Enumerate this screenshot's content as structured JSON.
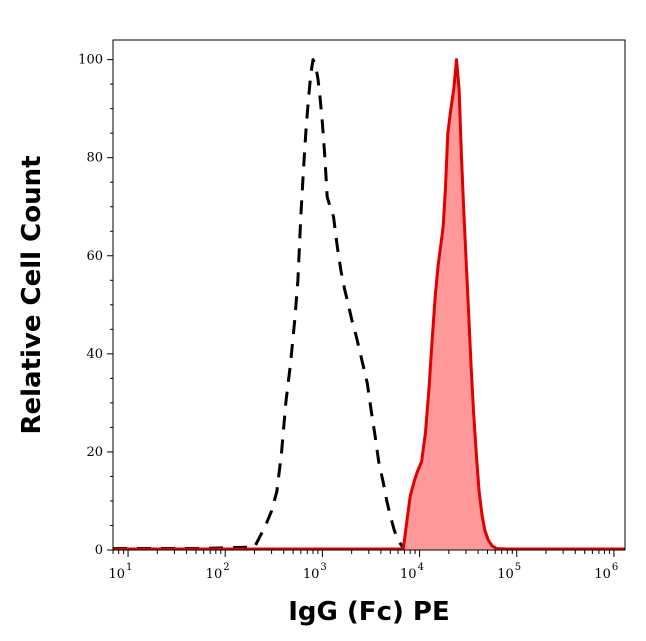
{
  "chart_data": {
    "type": "area",
    "title": "",
    "xlabel": "IgG (Fc) PE",
    "ylabel": "Relative Cell Count",
    "x_scale": "log10",
    "xlim": [
      7,
      1300000
    ],
    "ylim": [
      0,
      104
    ],
    "x_ticks": [
      {
        "base": "10",
        "exp": "1",
        "value": 10
      },
      {
        "base": "10",
        "exp": "2",
        "value": 100
      },
      {
        "base": "10",
        "exp": "3",
        "value": 1000
      },
      {
        "base": "10",
        "exp": "4",
        "value": 10000
      },
      {
        "base": "10",
        "exp": "5",
        "value": 100000
      },
      {
        "base": "10",
        "exp": "6",
        "value": 1000000
      }
    ],
    "y_ticks": [
      0,
      20,
      40,
      60,
      80,
      100
    ],
    "grid": false,
    "legend": "none",
    "series": [
      {
        "style": "dashed",
        "color": "#000000",
        "fill": "none",
        "points": [
          [
            7,
            0.3
          ],
          [
            50,
            0.3
          ],
          [
            200,
            0.6
          ],
          [
            260,
            5
          ],
          [
            300,
            8
          ],
          [
            340,
            12
          ],
          [
            380,
            20
          ],
          [
            420,
            30
          ],
          [
            470,
            38
          ],
          [
            520,
            47
          ],
          [
            560,
            55
          ],
          [
            600,
            68
          ],
          [
            640,
            78
          ],
          [
            680,
            86
          ],
          [
            720,
            92
          ],
          [
            760,
            97
          ],
          [
            800,
            100
          ],
          [
            850,
            99
          ],
          [
            900,
            96
          ],
          [
            950,
            92
          ],
          [
            1000,
            87
          ],
          [
            1060,
            80
          ],
          [
            1120,
            72
          ],
          [
            1200,
            70
          ],
          [
            1300,
            68
          ],
          [
            1420,
            62
          ],
          [
            1550,
            57
          ],
          [
            1700,
            53
          ],
          [
            1850,
            50
          ],
          [
            2000,
            47
          ],
          [
            2200,
            44
          ],
          [
            2400,
            41
          ],
          [
            2600,
            38
          ],
          [
            2900,
            34
          ],
          [
            3200,
            28
          ],
          [
            3500,
            23
          ],
          [
            3800,
            18
          ],
          [
            4200,
            14
          ],
          [
            4600,
            10
          ],
          [
            5000,
            7
          ],
          [
            5500,
            4
          ],
          [
            6000,
            2
          ],
          [
            6600,
            0.8
          ],
          [
            7000,
            0.3
          ]
        ]
      },
      {
        "style": "solid",
        "color": "#e00000",
        "fill": "#ff9999",
        "points": [
          [
            7,
            0.2
          ],
          [
            1000,
            0.2
          ],
          [
            6800,
            0.2
          ],
          [
            7300,
            5
          ],
          [
            8000,
            11
          ],
          [
            8800,
            14
          ],
          [
            9500,
            16
          ],
          [
            10500,
            18
          ],
          [
            11500,
            24
          ],
          [
            12500,
            33
          ],
          [
            13500,
            43
          ],
          [
            14500,
            52
          ],
          [
            15500,
            58
          ],
          [
            16500,
            62
          ],
          [
            17500,
            66
          ],
          [
            18500,
            74
          ],
          [
            19500,
            85
          ],
          [
            21000,
            90
          ],
          [
            22500,
            94
          ],
          [
            24000,
            100
          ],
          [
            25500,
            94
          ],
          [
            27000,
            80
          ],
          [
            28500,
            69
          ],
          [
            30000,
            60
          ],
          [
            32000,
            48
          ],
          [
            34000,
            37
          ],
          [
            36000,
            28
          ],
          [
            38500,
            19
          ],
          [
            41000,
            12
          ],
          [
            44000,
            7
          ],
          [
            47000,
            4
          ],
          [
            51000,
            2
          ],
          [
            56000,
            0.8
          ],
          [
            62000,
            0.3
          ],
          [
            80000,
            0.2
          ],
          [
            1300000,
            0.2
          ]
        ]
      }
    ]
  }
}
